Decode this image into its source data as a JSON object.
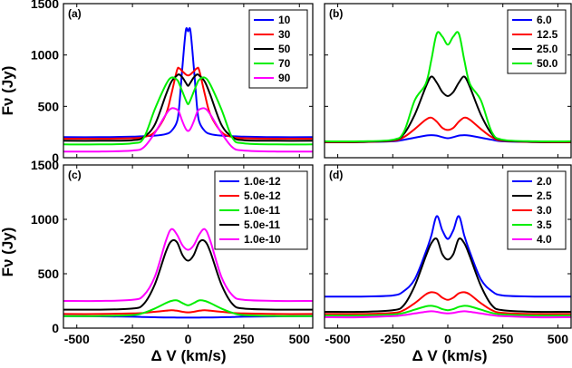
{
  "chart_data": [
    {
      "type": "line",
      "panel_label": "(a)",
      "xlabel": "",
      "ylabel": "Fν (Jy)",
      "xlim": [
        -560,
        560
      ],
      "ylim": [
        0,
        1500
      ],
      "xticks": [
        -500,
        -250,
        0,
        250,
        500
      ],
      "yticks": [
        0,
        500,
        1000,
        1500
      ],
      "x": [
        -560,
        -400,
        -250,
        -200,
        -150,
        -100,
        -75,
        -50,
        -40,
        -25,
        -10,
        0,
        10,
        25,
        40,
        50,
        75,
        100,
        150,
        200,
        250,
        400,
        560
      ],
      "legend": {
        "location": "top-right"
      },
      "series": [
        {
          "name": "10",
          "color": "#0000ff",
          "values": [
            200,
            200,
            205,
            210,
            215,
            230,
            260,
            350,
            500,
            900,
            1240,
            1230,
            1240,
            900,
            500,
            350,
            260,
            230,
            215,
            210,
            205,
            200,
            200
          ]
        },
        {
          "name": "30",
          "color": "#ff0000",
          "values": [
            185,
            185,
            190,
            200,
            250,
            420,
            620,
            850,
            870,
            840,
            810,
            800,
            810,
            840,
            870,
            850,
            620,
            420,
            250,
            200,
            190,
            185,
            185
          ]
        },
        {
          "name": "50",
          "color": "#000000",
          "values": [
            165,
            165,
            170,
            200,
            320,
            610,
            740,
            800,
            810,
            780,
            730,
            700,
            730,
            780,
            810,
            800,
            740,
            610,
            320,
            200,
            170,
            165,
            165
          ]
        },
        {
          "name": "70",
          "color": "#00ee00",
          "values": [
            130,
            130,
            140,
            190,
            470,
            710,
            780,
            760,
            720,
            640,
            560,
            520,
            560,
            640,
            720,
            760,
            780,
            710,
            470,
            190,
            140,
            130,
            130
          ]
        },
        {
          "name": "90",
          "color": "#ff00ff",
          "values": [
            60,
            60,
            70,
            100,
            240,
            420,
            480,
            470,
            440,
            350,
            280,
            260,
            280,
            350,
            440,
            470,
            480,
            420,
            240,
            100,
            70,
            60,
            60
          ]
        }
      ]
    },
    {
      "type": "line",
      "panel_label": "(b)",
      "xlabel": "",
      "ylabel": "",
      "xlim": [
        -560,
        560
      ],
      "ylim": [
        0,
        1500
      ],
      "xticks": [
        -500,
        -250,
        0,
        250,
        500
      ],
      "yticks": [
        0,
        500,
        1000,
        1500
      ],
      "x": [
        -560,
        -400,
        -250,
        -200,
        -150,
        -100,
        -75,
        -50,
        -25,
        0,
        25,
        50,
        75,
        100,
        150,
        200,
        250,
        400,
        560
      ],
      "legend": {
        "location": "top-right"
      },
      "series": [
        {
          "name": "6.0",
          "color": "#0000ff",
          "values": [
            150,
            152,
            160,
            175,
            195,
            215,
            220,
            215,
            200,
            190,
            200,
            215,
            220,
            215,
            195,
            175,
            160,
            152,
            150
          ]
        },
        {
          "name": "12.5",
          "color": "#ff0000",
          "values": [
            150,
            152,
            165,
            200,
            280,
            370,
            390,
            350,
            290,
            270,
            290,
            350,
            390,
            370,
            280,
            200,
            165,
            152,
            150
          ]
        },
        {
          "name": "25.0",
          "color": "#000000",
          "values": [
            155,
            155,
            170,
            230,
            420,
            690,
            790,
            730,
            640,
            600,
            640,
            730,
            790,
            690,
            420,
            230,
            170,
            155,
            155
          ]
        },
        {
          "name": "50.0",
          "color": "#00ee00",
          "values": [
            160,
            160,
            175,
            250,
            560,
            720,
            950,
            1210,
            1180,
            1100,
            1180,
            1210,
            950,
            720,
            560,
            250,
            175,
            160,
            160
          ]
        }
      ]
    },
    {
      "type": "line",
      "panel_label": "(c)",
      "xlabel": "Δ V (km/s)",
      "ylabel": "Fν (Jy)",
      "xlim": [
        -560,
        560
      ],
      "ylim": [
        0,
        1500
      ],
      "xticks": [
        -500,
        -250,
        0,
        250,
        500
      ],
      "yticks": [
        0,
        500,
        1000,
        1500
      ],
      "x": [
        -560,
        -400,
        -250,
        -200,
        -150,
        -100,
        -75,
        -50,
        -25,
        0,
        25,
        50,
        75,
        100,
        150,
        200,
        250,
        400,
        560
      ],
      "legend": {
        "location": "top-right"
      },
      "series": [
        {
          "name": "1.0e-12",
          "color": "#0000ff",
          "values": [
            110,
            108,
            105,
            102,
            100,
            98,
            98,
            97,
            97,
            97,
            97,
            97,
            98,
            98,
            100,
            102,
            105,
            108,
            110
          ]
        },
        {
          "name": "5.0e-12",
          "color": "#ff0000",
          "values": [
            130,
            130,
            135,
            140,
            150,
            160,
            165,
            160,
            150,
            145,
            150,
            160,
            165,
            160,
            150,
            140,
            135,
            130,
            130
          ]
        },
        {
          "name": "1.0e-11",
          "color": "#00ee00",
          "values": [
            110,
            112,
            120,
            140,
            180,
            230,
            250,
            255,
            230,
            210,
            230,
            255,
            250,
            230,
            180,
            140,
            120,
            112,
            110
          ]
        },
        {
          "name": "5.0e-11",
          "color": "#000000",
          "values": [
            170,
            170,
            180,
            220,
            400,
            700,
            800,
            790,
            670,
            620,
            670,
            790,
            800,
            700,
            400,
            220,
            180,
            170,
            170
          ]
        },
        {
          "name": "1.0e-10",
          "color": "#ff00ff",
          "values": [
            250,
            250,
            260,
            300,
            470,
            800,
            910,
            860,
            760,
            720,
            760,
            860,
            910,
            800,
            470,
            300,
            260,
            250,
            250
          ]
        }
      ]
    },
    {
      "type": "line",
      "panel_label": "(d)",
      "xlabel": "Δ V (km/s)",
      "ylabel": "",
      "xlim": [
        -560,
        560
      ],
      "ylim": [
        0,
        1500
      ],
      "xticks": [
        -500,
        -250,
        0,
        250,
        500
      ],
      "yticks": [
        0,
        500,
        1000,
        1500
      ],
      "x": [
        -560,
        -400,
        -250,
        -200,
        -150,
        -100,
        -75,
        -50,
        -25,
        0,
        25,
        50,
        75,
        100,
        150,
        200,
        250,
        400,
        560
      ],
      "legend": {
        "location": "top-right"
      },
      "series": [
        {
          "name": "2.0",
          "color": "#0000ff",
          "values": [
            290,
            290,
            300,
            340,
            450,
            700,
            850,
            1030,
            900,
            820,
            900,
            1030,
            850,
            700,
            450,
            340,
            300,
            290,
            290
          ]
        },
        {
          "name": "2.5",
          "color": "#000000",
          "values": [
            150,
            150,
            165,
            210,
            390,
            660,
            780,
            820,
            680,
            630,
            680,
            820,
            780,
            660,
            390,
            210,
            165,
            150,
            150
          ]
        },
        {
          "name": "3.0",
          "color": "#ff0000",
          "values": [
            130,
            130,
            140,
            165,
            230,
            310,
            330,
            320,
            280,
            260,
            280,
            320,
            330,
            310,
            230,
            165,
            140,
            130,
            130
          ]
        },
        {
          "name": "3.5",
          "color": "#00ee00",
          "values": [
            115,
            115,
            125,
            140,
            170,
            200,
            205,
            195,
            175,
            165,
            175,
            195,
            205,
            200,
            170,
            140,
            125,
            115,
            115
          ]
        },
        {
          "name": "4.0",
          "color": "#ff00ff",
          "values": [
            100,
            100,
            110,
            120,
            135,
            150,
            155,
            150,
            140,
            135,
            140,
            150,
            155,
            150,
            135,
            120,
            110,
            100,
            100
          ]
        }
      ]
    }
  ]
}
